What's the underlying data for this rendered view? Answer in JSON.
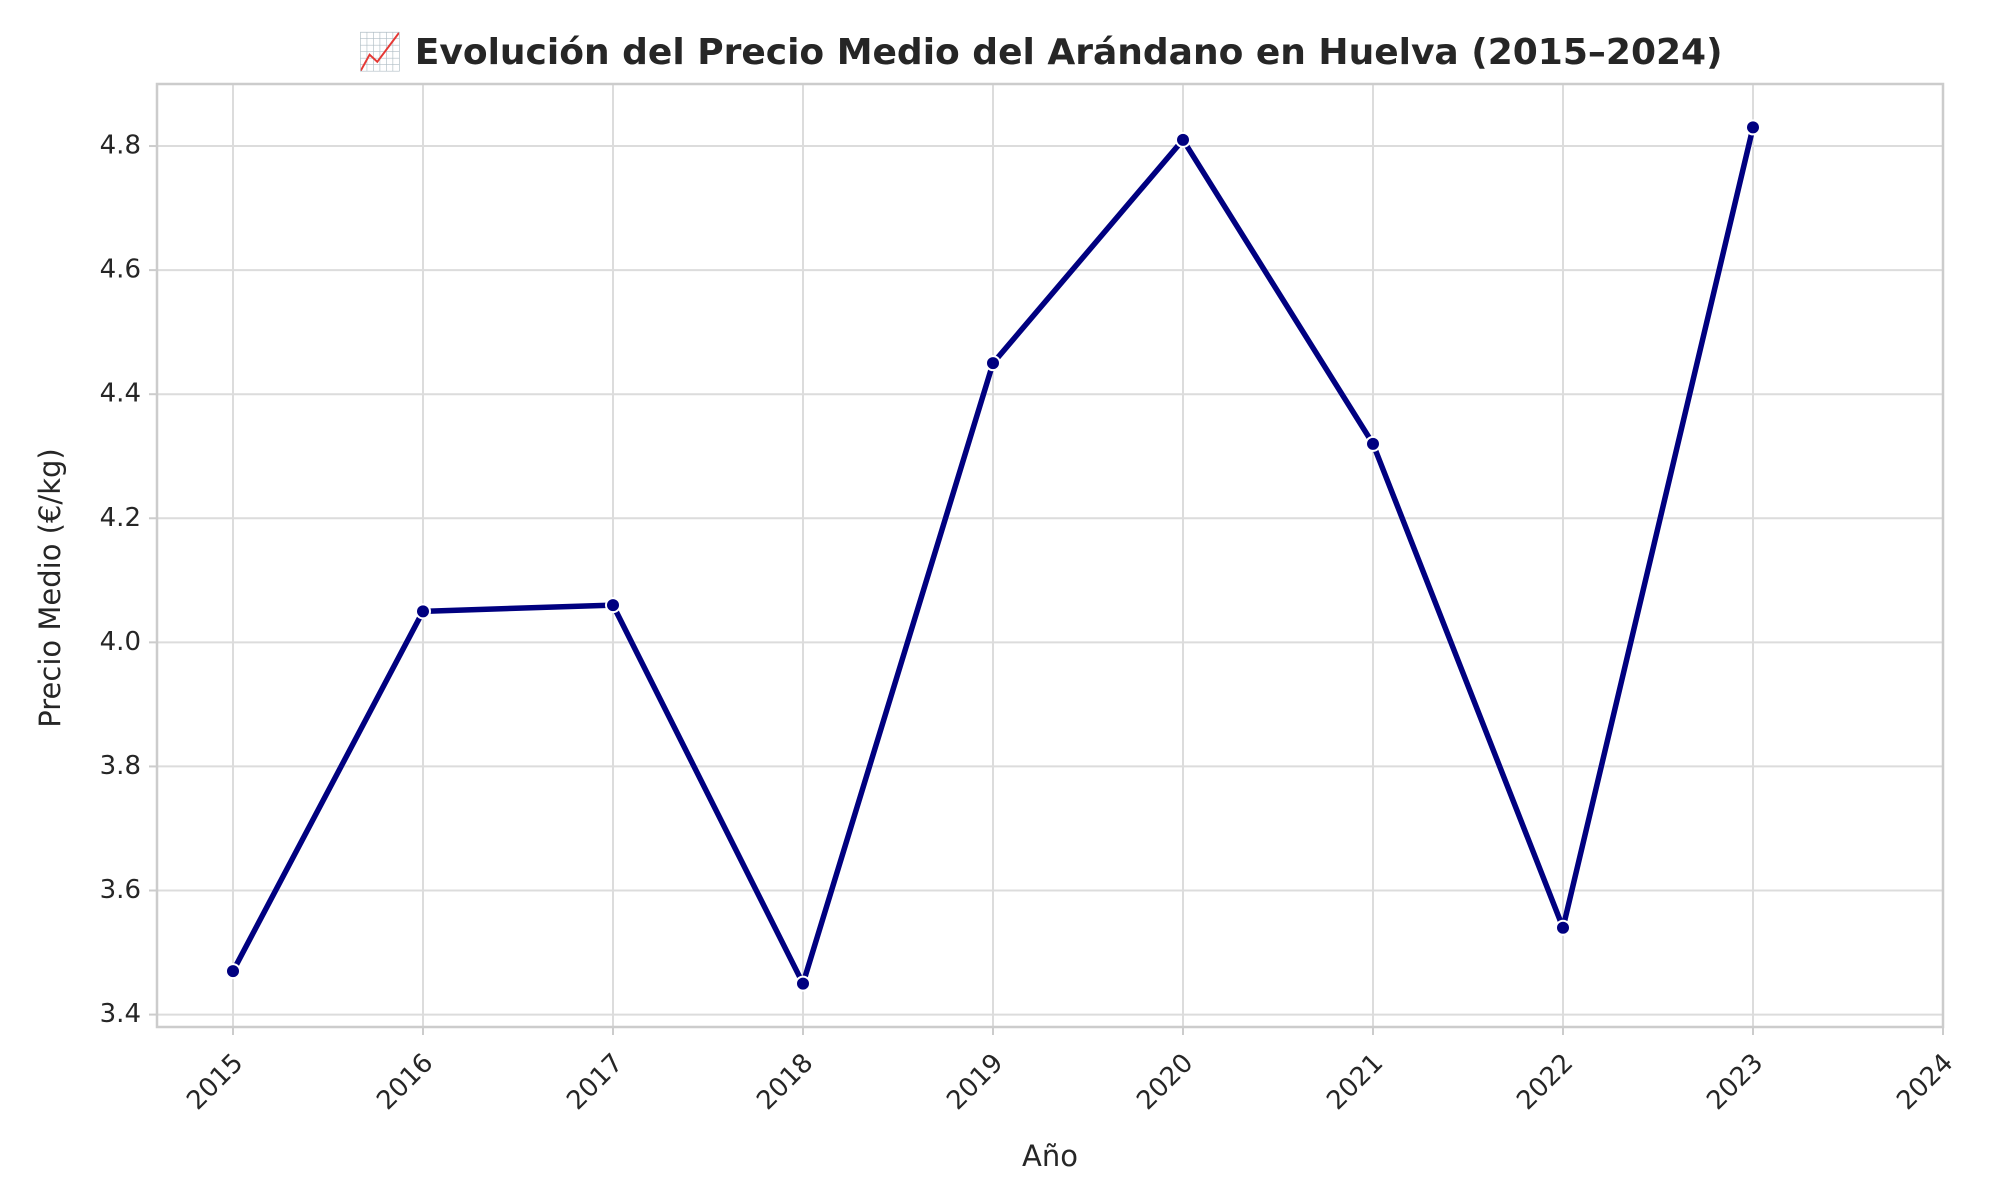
{
  "chart_data": {
    "type": "line",
    "title": "📈 Evolución del Precio Medio del Arándano en Huelva (2015–2024)",
    "xlabel": "Año",
    "ylabel": "Precio Medio (€/kg)",
    "x": [
      2015,
      2016,
      2017,
      2018,
      2019,
      2020,
      2021,
      2022,
      2023
    ],
    "series": [
      {
        "values": [
          3.47,
          4.05,
          4.06,
          3.45,
          4.45,
          4.81,
          4.32,
          3.54,
          4.83
        ]
      }
    ],
    "x_ticks": [
      "2015",
      "2016",
      "2017",
      "2018",
      "2019",
      "2020",
      "2021",
      "2022",
      "2023",
      "2024"
    ],
    "y_ticks": [
      "3.4",
      "3.6",
      "3.8",
      "4.0",
      "4.2",
      "4.4",
      "4.6",
      "4.8"
    ],
    "xlim": [
      2014.6,
      2024
    ],
    "ylim": [
      3.38,
      4.9
    ],
    "grid": true,
    "legend": "none",
    "x_tick_rotation_deg": 45,
    "colors": {
      "line": "#000080",
      "grid": "#dcdcdc",
      "frame": "#cccccc",
      "text": "#262626"
    }
  }
}
